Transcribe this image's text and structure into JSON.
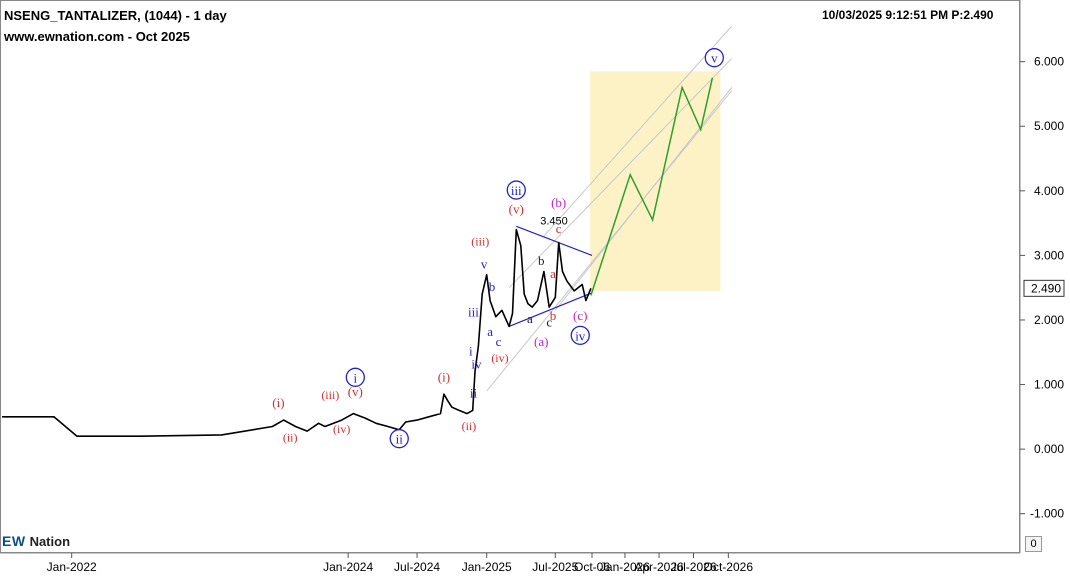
{
  "header": {
    "symbol_line": "NSENG_TANTALIZER, (1044) - 1 day",
    "site_line": "www.ewnation.com  - Oct 2025",
    "timestamp_line": "10/03/2025 9:12:51 PM  P:2.490"
  },
  "logo": {
    "mark": "EW",
    "name": "Nation"
  },
  "scroll_button": "0",
  "chart_data": {
    "type": "line",
    "x_tick_labels": [
      "Jan-2022",
      "Jan-2024",
      "Jul-2024",
      "Jan-2025",
      "Jul-2025",
      "Oct-06",
      "Jan-2026",
      "Apr-2026",
      "Jul-2026",
      "Oct-2026"
    ],
    "y_tick_labels": [
      "6.000",
      "5.000",
      "4.000",
      "3.000",
      "2.000",
      "1.000",
      "0.000",
      "-1.000"
    ],
    "ylim": [
      -1.5,
      6.8
    ],
    "last_price_label": "2.490",
    "grid": false,
    "price_path": [
      [
        "2021-07-01",
        0.5
      ],
      [
        "2021-11-15",
        0.5
      ],
      [
        "2022-01-15",
        0.2
      ],
      [
        "2022-07-01",
        0.2
      ],
      [
        "2023-02-01",
        0.22
      ],
      [
        "2023-06-15",
        0.35
      ],
      [
        "2023-07-15",
        0.45
      ],
      [
        "2023-08-15",
        0.35
      ],
      [
        "2023-09-15",
        0.28
      ],
      [
        "2023-10-15",
        0.4
      ],
      [
        "2023-11-01",
        0.35
      ],
      [
        "2023-12-15",
        0.45
      ],
      [
        "2024-01-15",
        0.55
      ],
      [
        "2024-02-15",
        0.48
      ],
      [
        "2024-03-15",
        0.4
      ],
      [
        "2024-04-15",
        0.35
      ],
      [
        "2024-05-15",
        0.3
      ],
      [
        "2024-06-01",
        0.42
      ],
      [
        "2024-07-01",
        0.45
      ],
      [
        "2024-08-01",
        0.5
      ],
      [
        "2024-09-01",
        0.55
      ],
      [
        "2024-09-10",
        0.85
      ],
      [
        "2024-09-20",
        0.75
      ],
      [
        "2024-10-01",
        0.65
      ],
      [
        "2024-10-20",
        0.6
      ],
      [
        "2024-11-10",
        0.55
      ],
      [
        "2024-11-25",
        0.6
      ],
      [
        "2024-12-01",
        1.2
      ],
      [
        "2024-12-10",
        1.6
      ],
      [
        "2024-12-20",
        2.4
      ],
      [
        "2025-01-01",
        2.7
      ],
      [
        "2025-01-10",
        2.3
      ],
      [
        "2025-01-25",
        2.05
      ],
      [
        "2025-02-10",
        2.15
      ],
      [
        "2025-03-01",
        1.9
      ],
      [
        "2025-03-10",
        2.1
      ],
      [
        "2025-03-20",
        3.4
      ],
      [
        "2025-04-01",
        3.15
      ],
      [
        "2025-04-10",
        2.4
      ],
      [
        "2025-04-20",
        2.25
      ],
      [
        "2025-05-01",
        2.2
      ],
      [
        "2025-05-15",
        2.3
      ],
      [
        "2025-06-01",
        2.75
      ],
      [
        "2025-06-15",
        2.2
      ],
      [
        "2025-07-01",
        2.35
      ],
      [
        "2025-07-10",
        3.2
      ],
      [
        "2025-07-20",
        2.75
      ],
      [
        "2025-08-01",
        2.6
      ],
      [
        "2025-08-20",
        2.45
      ],
      [
        "2025-09-10",
        2.55
      ],
      [
        "2025-09-20",
        2.3
      ],
      [
        "2025-10-03",
        2.49
      ]
    ],
    "series": [
      {
        "name": "",
        "color": "#2e9e2e",
        "points": [
          [
            "2025-10-03",
            2.38
          ],
          [
            "2026-01-15",
            4.25
          ],
          [
            "2026-03-15",
            3.55
          ],
          [
            "2026-06-01",
            5.6
          ],
          [
            "2026-07-20",
            4.95
          ],
          [
            "2026-08-20",
            5.75
          ]
        ]
      }
    ],
    "target_box": {
      "color": "#fdf2c6",
      "x": [
        "2025-10-01",
        "2026-09-10"
      ],
      "y": [
        2.45,
        5.85
      ]
    },
    "triangle": {
      "color": "#2323c8",
      "upper": [
        [
          "2025-03-20",
          3.45
        ],
        [
          "2025-10-06",
          3.0
        ]
      ],
      "lower": [
        [
          "2025-03-01",
          1.9
        ],
        [
          "2025-10-06",
          2.42
        ]
      ],
      "label": "3.450"
    },
    "channel_lines": [
      [
        [
          "2025-01-01",
          0.9
        ],
        [
          "2026-10-10",
          5.55
        ]
      ],
      [
        [
          "2025-07-01",
          2.15
        ],
        [
          "2026-10-10",
          5.6
        ]
      ],
      [
        [
          "2025-03-01",
          2.5
        ],
        [
          "2026-10-10",
          6.05
        ]
      ],
      [
        [
          "2025-06-01",
          3.3
        ],
        [
          "2026-10-10",
          6.55
        ]
      ]
    ],
    "wave_labels": [
      {
        "text": "(i)",
        "color": "#d03030",
        "circled": false,
        "x": "2023-07-01",
        "y": 0.65
      },
      {
        "text": "(ii)",
        "color": "#d03030",
        "circled": false,
        "x": "2023-08-01",
        "y": 0.12
      },
      {
        "text": "(iii)",
        "color": "#d03030",
        "circled": false,
        "x": "2023-11-15",
        "y": 0.78
      },
      {
        "text": "(iv)",
        "color": "#d03030",
        "circled": false,
        "x": "2023-12-15",
        "y": 0.25
      },
      {
        "text": "(v)",
        "color": "#d03030",
        "circled": false,
        "x": "2024-01-20",
        "y": 0.82
      },
      {
        "text": "i",
        "color": "#2323c8",
        "circled": true,
        "x": "2024-01-20",
        "y": 1.05
      },
      {
        "text": "ii",
        "color": "#2323c8",
        "circled": true,
        "x": "2024-05-15",
        "y": 0.1
      },
      {
        "text": "(i)",
        "color": "#d03030",
        "circled": false,
        "x": "2024-09-10",
        "y": 1.05
      },
      {
        "text": "(ii)",
        "color": "#d03030",
        "circled": false,
        "x": "2024-11-15",
        "y": 0.3
      },
      {
        "text": "i",
        "color": "#2323c8",
        "circled": false,
        "x": "2024-11-20",
        "y": 1.45
      },
      {
        "text": "ii",
        "color": "#2323c8",
        "circled": false,
        "x": "2024-11-27",
        "y": 0.8
      },
      {
        "text": "iii",
        "color": "#2323c8",
        "circled": false,
        "x": "2024-11-27",
        "y": 2.05
      },
      {
        "text": "iv",
        "color": "#2323c8",
        "circled": false,
        "x": "2024-12-05",
        "y": 1.25
      },
      {
        "text": "(iii)",
        "color": "#d03030",
        "circled": false,
        "x": "2024-12-15",
        "y": 3.15
      },
      {
        "text": "v",
        "color": "#2323c8",
        "circled": false,
        "x": "2024-12-25",
        "y": 2.8
      },
      {
        "text": "b",
        "color": "#2323c8",
        "circled": false,
        "x": "2025-01-15",
        "y": 2.45
      },
      {
        "text": "a",
        "color": "#2323c8",
        "circled": false,
        "x": "2025-01-10",
        "y": 1.75
      },
      {
        "text": "c",
        "color": "#2323c8",
        "circled": false,
        "x": "2025-02-01",
        "y": 1.6
      },
      {
        "text": "(iv)",
        "color": "#d03030",
        "circled": false,
        "x": "2025-02-05",
        "y": 1.35
      },
      {
        "text": "iii",
        "color": "#2323c8",
        "circled": true,
        "x": "2025-03-20",
        "y": 3.95
      },
      {
        "text": "(v)",
        "color": "#d03030",
        "circled": false,
        "x": "2025-03-20",
        "y": 3.65
      },
      {
        "text": "b",
        "color": "#222222",
        "circled": false,
        "x": "2025-05-25",
        "y": 2.85
      },
      {
        "text": "a",
        "color": "#222222",
        "circled": false,
        "x": "2025-04-25",
        "y": 1.95
      },
      {
        "text": "c",
        "color": "#222222",
        "circled": false,
        "x": "2025-06-15",
        "y": 1.9
      },
      {
        "text": "(a)",
        "color": "#cc22cc",
        "circled": false,
        "x": "2025-05-25",
        "y": 1.6
      },
      {
        "text": "(b)",
        "color": "#cc22cc",
        "circled": false,
        "x": "2025-07-10",
        "y": 3.75
      },
      {
        "text": "c",
        "color": "#d03030",
        "circled": false,
        "x": "2025-07-10",
        "y": 3.35
      },
      {
        "text": "a",
        "color": "#d03030",
        "circled": false,
        "x": "2025-06-25",
        "y": 2.65
      },
      {
        "text": "b",
        "color": "#d03030",
        "circled": false,
        "x": "2025-06-25",
        "y": 2.0
      },
      {
        "text": "(c)",
        "color": "#cc22cc",
        "circled": false,
        "x": "2025-09-05",
        "y": 2.0
      },
      {
        "text": "iv",
        "color": "#2323c8",
        "circled": true,
        "x": "2025-09-05",
        "y": 1.7
      },
      {
        "text": "v",
        "color": "#2323c8",
        "circled": true,
        "x": "2026-08-25",
        "y": 6.0
      }
    ]
  }
}
